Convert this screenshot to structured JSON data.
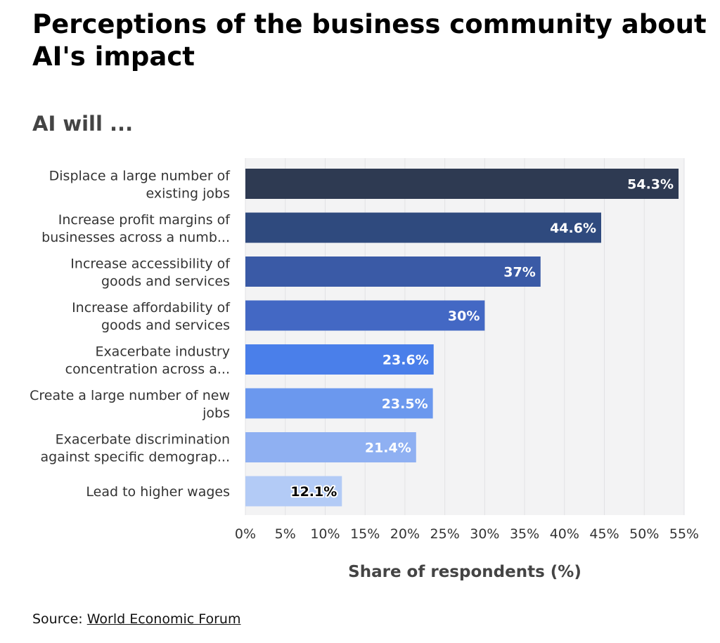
{
  "page": {
    "title": "Perceptions of the business community about AI's impact",
    "subtitle": "AI will ...",
    "source_prefix": "Source:",
    "source_link": "World Economic Forum"
  },
  "chart_data": {
    "type": "bar",
    "orientation": "horizontal",
    "categories": [
      [
        "Displace a large number of",
        "existing jobs"
      ],
      [
        "Increase profit margins of",
        "businesses across a numb..."
      ],
      [
        "Increase accessibility of",
        "goods and services"
      ],
      [
        "Increase affordability of",
        "goods and services"
      ],
      [
        "Exacerbate industry",
        "concentration across a..."
      ],
      [
        "Create a large number of new",
        "jobs"
      ],
      [
        "Exacerbate discrimination",
        "against specific demograp..."
      ],
      [
        "Lead to higher wages"
      ]
    ],
    "values": [
      54.3,
      44.6,
      37,
      30,
      23.6,
      23.5,
      21.4,
      12.1
    ],
    "value_labels": [
      "54.3%",
      "44.6%",
      "37%",
      "30%",
      "23.6%",
      "23.5%",
      "21.4%",
      "12.1%"
    ],
    "colors": [
      "#2e3a52",
      "#2f4a7e",
      "#3a5aa6",
      "#4368c4",
      "#4a7fea",
      "#6b98ee",
      "#8fb0f2",
      "#b3cbf6"
    ],
    "label_colors": [
      "#ffffff",
      "#ffffff",
      "#ffffff",
      "#ffffff",
      "#ffffff",
      "#ffffff",
      "#ffffff",
      "#000000"
    ],
    "xlim": [
      0,
      55
    ],
    "xticks": [
      0,
      5,
      10,
      15,
      20,
      25,
      30,
      35,
      40,
      45,
      50,
      55
    ],
    "xtick_labels": [
      "0%",
      "5%",
      "10%",
      "15%",
      "20%",
      "25%",
      "30%",
      "35%",
      "40%",
      "45%",
      "50%",
      "55%"
    ],
    "xlabel": "Share of respondents (%)",
    "ylabel": "",
    "plot_background": "#f3f3f4",
    "gridlines": true,
    "legend": "none"
  }
}
